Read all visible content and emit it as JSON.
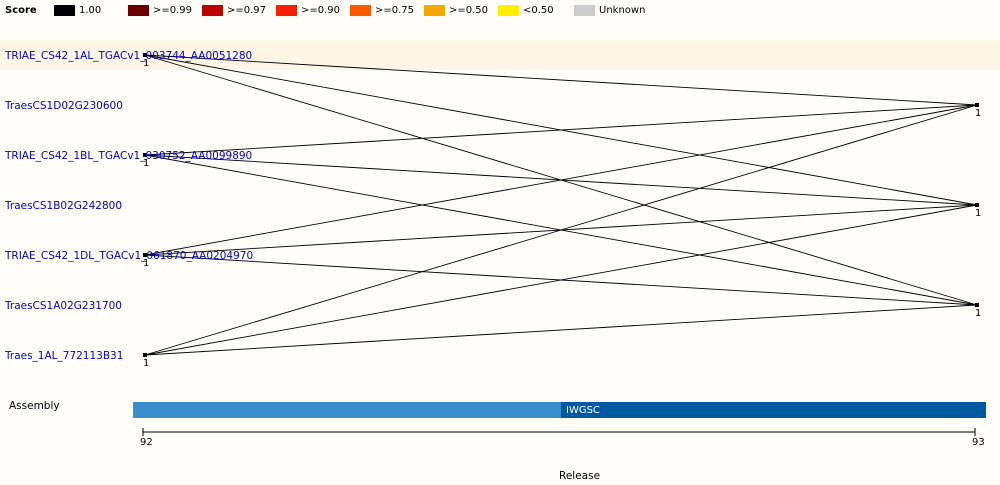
{
  "legend": {
    "title": "Score",
    "items": [
      {
        "label": "1.00",
        "color": "#000000"
      },
      {
        "label": ">=0.99",
        "color": "#6b0000"
      },
      {
        "label": ">=0.97",
        "color": "#bb0000"
      },
      {
        "label": ">=0.90",
        "color": "#f52000"
      },
      {
        "label": ">=0.75",
        "color": "#ff5a00"
      },
      {
        "label": ">=0.50",
        "color": "#f5a800"
      },
      {
        "label": "<0.50",
        "color": "#fff000"
      },
      {
        "label": "Unknown",
        "color": "#cccccc"
      }
    ]
  },
  "genes": [
    "TRIAE_CS42_1AL_TGACv1_003744_AA0051280",
    "TraesCS1D02G230600",
    "TRIAE_CS42_1BL_TGACv1_030752_AA0099890",
    "TraesCS1B02G242800",
    "TRIAE_CS42_1DL_TGACv1_061870_AA0204970",
    "TraesCS1A02G231700",
    "Traes_1AL_772113B31"
  ],
  "left_counts": [
    "1",
    "1",
    "1",
    "1"
  ],
  "right_counts": [
    "1",
    "1",
    "1"
  ],
  "assembly": {
    "label": "Assembly",
    "bar_label": "IWGSC",
    "color_left": "#3a8ecb",
    "color_right": "#0058a0"
  },
  "axis": {
    "title": "Release",
    "tick_start": "92",
    "tick_end": "93"
  }
}
